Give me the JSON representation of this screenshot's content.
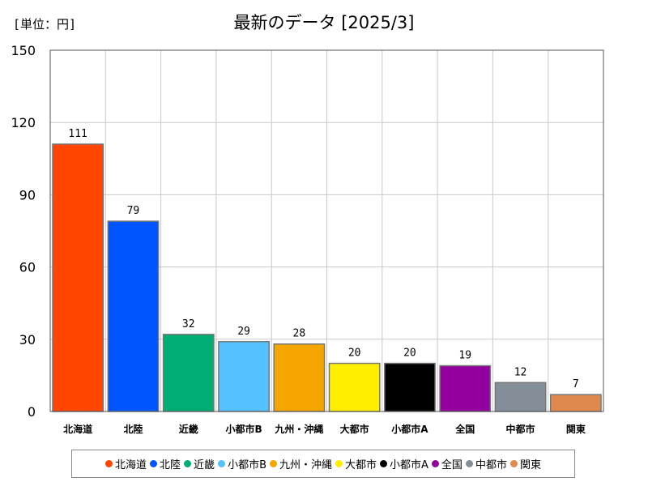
{
  "chart_data": {
    "type": "bar",
    "title": "最新のデータ [2025/3]",
    "unit_label": "[単位：円]",
    "ylim": [
      0,
      150
    ],
    "yticks": [
      0,
      30,
      60,
      90,
      120,
      150
    ],
    "grid": true,
    "legend_position": "bottom",
    "categories": [
      "北海道",
      "北陸",
      "近畿",
      "小都市B",
      "九州・沖縄",
      "大都市",
      "小都市A",
      "全国",
      "中都市",
      "関東"
    ],
    "values": [
      111,
      79,
      32,
      29,
      28,
      20,
      20,
      19,
      12,
      7
    ],
    "colors": [
      "#ff4500",
      "#0055ff",
      "#00ad74",
      "#55c2ff",
      "#f5a500",
      "#ffee00",
      "#000000",
      "#92009e",
      "#838e99",
      "#e0894f"
    ]
  }
}
